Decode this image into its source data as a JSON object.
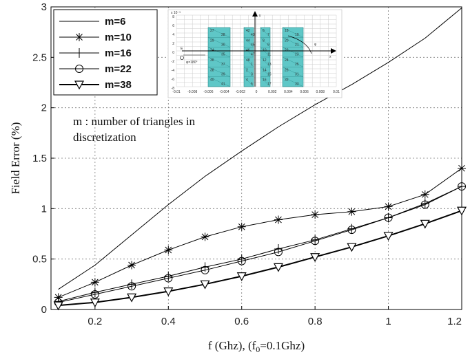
{
  "chart_data": {
    "type": "line",
    "xlabel": "f (Ghz), (f",
    "xlabel_sub": "0",
    "xlabel_tail": "=0.1Ghz)",
    "ylabel": "Field Error  (%)",
    "xlim": [
      0.08,
      1.2
    ],
    "ylim": [
      0,
      3
    ],
    "grid": true,
    "legend_position": "top-left",
    "x_ticks": [
      "0.2",
      "0.4",
      "0.6",
      "0.8",
      "1",
      "1.2"
    ],
    "y_ticks": [
      "0",
      "0.5",
      "1",
      "1.5",
      "2",
      "2.5",
      "3"
    ],
    "annotation": [
      "m : number of triangles in",
      "discretization"
    ],
    "series": [
      {
        "name": "m=6",
        "marker": "none",
        "line_width": 1,
        "x": [
          0.1,
          0.2,
          0.3,
          0.4,
          0.5,
          0.6,
          0.7,
          0.8,
          0.9,
          1.0,
          1.1,
          1.2
        ],
        "y": [
          0.2,
          0.44,
          0.74,
          1.04,
          1.32,
          1.57,
          1.81,
          2.03,
          2.23,
          2.45,
          2.69,
          2.99
        ]
      },
      {
        "name": "m=10",
        "marker": "star",
        "line_width": 1,
        "x": [
          0.1,
          0.2,
          0.3,
          0.4,
          0.5,
          0.6,
          0.7,
          0.8,
          0.9,
          1.0,
          1.1,
          1.2
        ],
        "y": [
          0.12,
          0.27,
          0.44,
          0.59,
          0.72,
          0.82,
          0.89,
          0.94,
          0.97,
          1.02,
          1.14,
          1.4
        ]
      },
      {
        "name": "m=16",
        "marker": "plus",
        "line_width": 1,
        "x": [
          0.1,
          0.2,
          0.3,
          0.4,
          0.5,
          0.6,
          0.7,
          0.8,
          0.9,
          1.0,
          1.1,
          1.2
        ],
        "y": [
          0.08,
          0.17,
          0.25,
          0.33,
          0.42,
          0.5,
          0.6,
          0.69,
          0.8,
          0.91,
          1.05,
          1.22
        ]
      },
      {
        "name": "m=22",
        "marker": "circle",
        "line_width": 1,
        "x": [
          0.1,
          0.2,
          0.3,
          0.4,
          0.5,
          0.6,
          0.7,
          0.8,
          0.9,
          1.0,
          1.1,
          1.2
        ],
        "y": [
          0.07,
          0.15,
          0.23,
          0.31,
          0.39,
          0.48,
          0.57,
          0.68,
          0.79,
          0.91,
          1.04,
          1.22
        ]
      },
      {
        "name": "m=38",
        "marker": "triangle-down",
        "line_width": 2,
        "x": [
          0.1,
          0.2,
          0.3,
          0.4,
          0.5,
          0.6,
          0.7,
          0.8,
          0.9,
          1.0,
          1.1,
          1.2
        ],
        "y": [
          0.04,
          0.07,
          0.12,
          0.18,
          0.25,
          0.33,
          0.42,
          0.52,
          0.62,
          0.73,
          0.85,
          0.98
        ]
      }
    ],
    "inset": {
      "labels": [
        "x 10⁻³",
        "y",
        "x",
        "E",
        "φ=180°",
        "φ"
      ],
      "x_ticks": [
        "-0.01",
        "-0.008",
        "-0.006",
        "-0.004",
        "-0.002",
        "0",
        "0.002",
        "0.004",
        "0.006",
        "0.008",
        "0.01"
      ],
      "y_ticks": [
        "8",
        "6",
        "4",
        "2",
        "0",
        "-2",
        "-4",
        "-6",
        "-8"
      ],
      "cell_numbers": [
        "27",
        "28",
        "29",
        "30",
        "34",
        "35",
        "36",
        "37",
        "38",
        "39",
        "40",
        "41",
        "42",
        "43",
        "44",
        "45",
        "46",
        "47",
        "48",
        "1",
        "2",
        "3",
        "4",
        "5",
        "6",
        "7",
        "8",
        "9",
        "10",
        "11",
        "12",
        "13",
        "14",
        "15",
        "16",
        "17",
        "18",
        "19",
        "20",
        "21",
        "22",
        "23",
        "24",
        "25",
        "26",
        "31",
        "32",
        "33"
      ]
    }
  }
}
